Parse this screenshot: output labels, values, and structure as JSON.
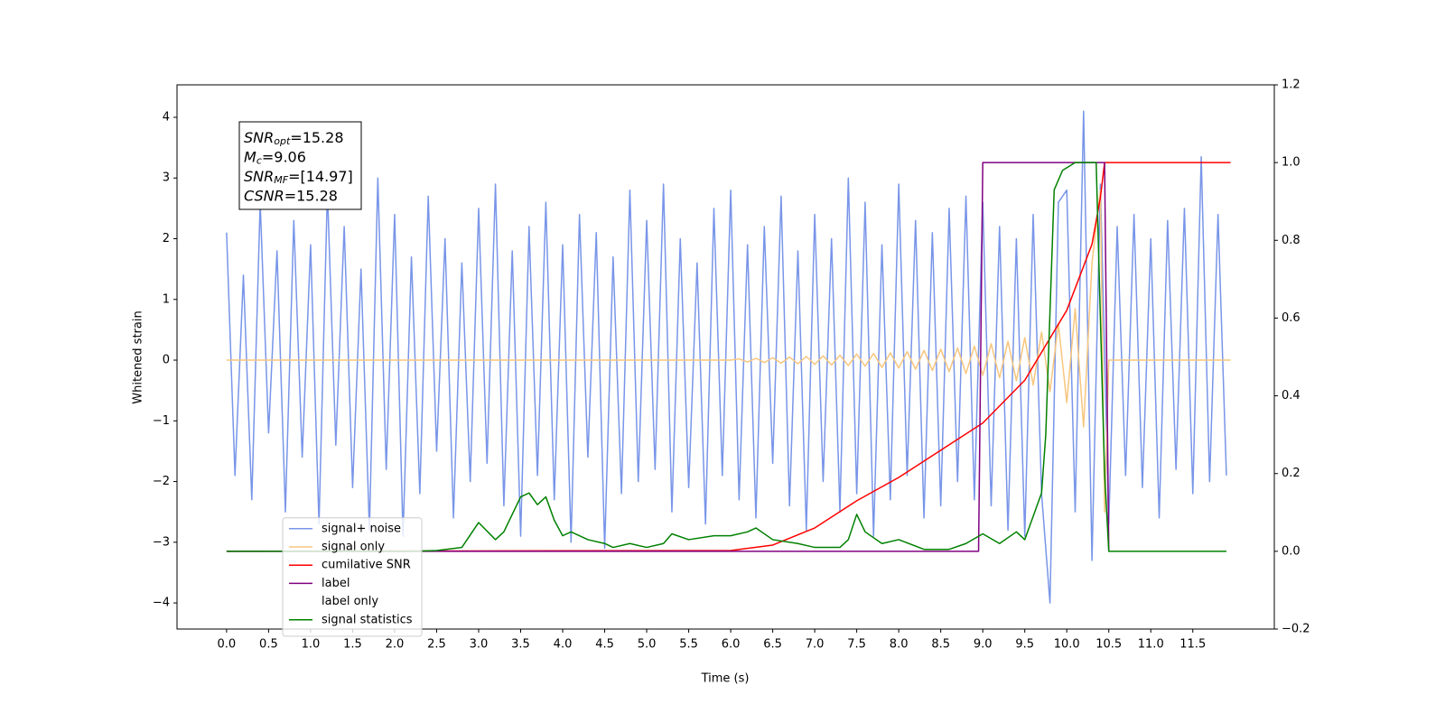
{
  "chart_data": {
    "type": "line",
    "xlabel": "Time (s)",
    "ylabel": "Whitened strain",
    "xlim": [
      -0.59,
      12.47
    ],
    "ylim": [
      -4.43,
      4.535
    ],
    "y2lim": [
      -0.2,
      1.2
    ],
    "xticks": [
      {
        "value": 0,
        "label": "0.0"
      },
      0.5,
      {
        "value": 1,
        "label": "1.0"
      },
      1.5,
      {
        "value": 2,
        "label": "2.0"
      },
      2.5,
      {
        "value": 3,
        "label": "3.0"
      },
      3.5,
      {
        "value": 4,
        "label": "4.0"
      },
      4.5,
      {
        "value": 5,
        "label": "5.0"
      },
      5.5,
      {
        "value": 6,
        "label": "6.0"
      },
      6.5,
      {
        "value": 7,
        "label": "7.0"
      },
      7.5,
      {
        "value": 8,
        "label": "8.0"
      },
      8.5,
      {
        "value": 9,
        "label": "9.0"
      },
      9.5,
      {
        "value": 10,
        "label": "10.0"
      },
      10.5,
      {
        "value": 11,
        "label": "11.0"
      },
      11.5
    ],
    "yticks": [
      {
        "value": -4,
        "label": "−4"
      },
      {
        "value": -3,
        "label": "−3"
      },
      {
        "value": -2,
        "label": "−2"
      },
      {
        "value": -1,
        "label": "−1"
      },
      0,
      1,
      2,
      3,
      4
    ],
    "y2ticks": [
      {
        "value": -0.2,
        "label": "−0.2"
      },
      {
        "value": 0,
        "label": "0.0"
      },
      0.2,
      0.4,
      0.6,
      0.8,
      {
        "value": 1,
        "label": "1.0"
      },
      1.2
    ],
    "legend": "lower left",
    "annotation": [
      {
        "base": "SNR",
        "sub": "opt",
        "text": "=15.28"
      },
      {
        "base": "M",
        "sub": "c",
        "text": "=9.06"
      },
      {
        "base": "SNR",
        "sub": "MF",
        "text": "=[14.97]"
      },
      {
        "base": "CSNR",
        "sub": "",
        "text": "=15.28"
      }
    ],
    "series": [
      {
        "name": "signal+ noise",
        "color": "#7895e8",
        "axis": "y",
        "x": [
          0.0,
          0.1,
          0.2,
          0.3,
          0.4,
          0.5,
          0.6,
          0.7,
          0.8,
          0.9,
          1.0,
          1.1,
          1.2,
          1.3,
          1.4,
          1.5,
          1.6,
          1.7,
          1.8,
          1.9,
          2.0,
          2.1,
          2.2,
          2.3,
          2.4,
          2.5,
          2.6,
          2.7,
          2.8,
          2.9,
          3.0,
          3.1,
          3.2,
          3.3,
          3.4,
          3.5,
          3.6,
          3.7,
          3.8,
          3.9,
          4.0,
          4.1,
          4.2,
          4.3,
          4.4,
          4.5,
          4.6,
          4.7,
          4.8,
          4.9,
          5.0,
          5.1,
          5.2,
          5.3,
          5.4,
          5.5,
          5.6,
          5.7,
          5.8,
          5.9,
          6.0,
          6.1,
          6.2,
          6.3,
          6.4,
          6.5,
          6.6,
          6.7,
          6.8,
          6.9,
          7.0,
          7.1,
          7.2,
          7.3,
          7.4,
          7.5,
          7.6,
          7.7,
          7.8,
          7.9,
          8.0,
          8.1,
          8.2,
          8.3,
          8.4,
          8.5,
          8.6,
          8.7,
          8.8,
          8.9,
          9.0,
          9.1,
          9.2,
          9.3,
          9.4,
          9.5,
          9.6,
          9.7,
          9.8,
          9.9,
          10.0,
          10.1,
          10.2,
          10.3,
          10.4,
          10.5,
          10.6,
          10.7,
          10.8,
          10.9,
          11.0,
          11.1,
          11.2,
          11.3,
          11.4,
          11.5,
          11.6,
          11.7,
          11.8,
          11.9
        ],
        "values": [
          2.1,
          -1.9,
          1.4,
          -2.3,
          2.6,
          -1.2,
          1.8,
          -2.5,
          2.3,
          -1.6,
          1.9,
          -2.7,
          2.8,
          -1.4,
          2.2,
          -2.1,
          1.5,
          -2.8,
          3.0,
          -1.8,
          2.4,
          -2.9,
          1.7,
          -2.2,
          2.7,
          -1.5,
          2.0,
          -2.6,
          1.6,
          -2.0,
          2.5,
          -1.7,
          2.9,
          -2.4,
          1.8,
          -2.9,
          2.2,
          -1.9,
          2.6,
          -2.3,
          1.9,
          -3.0,
          2.4,
          -1.6,
          2.1,
          -3.1,
          1.7,
          -2.2,
          2.8,
          -2.0,
          2.3,
          -1.8,
          2.9,
          -2.5,
          2.0,
          -2.1,
          1.6,
          -2.7,
          2.5,
          -1.9,
          2.8,
          -2.3,
          1.9,
          -2.6,
          2.2,
          -1.7,
          2.7,
          -2.4,
          1.8,
          -2.8,
          2.4,
          -2.0,
          2.0,
          -2.5,
          3.0,
          -2.2,
          2.6,
          -2.9,
          1.9,
          -2.3,
          2.9,
          -1.9,
          2.3,
          -2.6,
          2.1,
          -2.4,
          2.5,
          -2.0,
          2.7,
          -2.3,
          2.6,
          -2.4,
          2.2,
          -2.8,
          2.0,
          -2.9,
          2.4,
          -2.2,
          -4.0,
          2.6,
          2.8,
          -2.5,
          4.1,
          -3.3,
          2.9,
          -2.7,
          2.2,
          -1.9,
          2.4,
          -2.1,
          2.0,
          -2.6,
          2.3,
          -1.8,
          2.5,
          -2.2,
          3.35,
          -2.0,
          2.4,
          -1.9
        ]
      },
      {
        "name": "signal only",
        "color": "#f7c67e",
        "axis": "y",
        "x": [
          0,
          6.0,
          6.1,
          6.2,
          6.3,
          6.4,
          6.5,
          6.6,
          6.7,
          6.8,
          6.9,
          7.0,
          7.1,
          7.2,
          7.3,
          7.4,
          7.5,
          7.6,
          7.7,
          7.8,
          7.9,
          8.0,
          8.1,
          8.2,
          8.3,
          8.4,
          8.5,
          8.6,
          8.7,
          8.8,
          8.9,
          9.0,
          9.1,
          9.2,
          9.3,
          9.4,
          9.5,
          9.6,
          9.7,
          9.8,
          9.9,
          10.0,
          10.1,
          10.2,
          10.3,
          10.4,
          10.45,
          10.5,
          11.95
        ],
        "values": [
          0,
          0,
          0.02,
          -0.03,
          0.03,
          -0.04,
          0.04,
          -0.05,
          0.05,
          -0.06,
          0.06,
          -0.07,
          0.07,
          -0.08,
          0.08,
          -0.09,
          0.1,
          -0.1,
          0.11,
          -0.12,
          0.12,
          -0.13,
          0.14,
          -0.15,
          0.16,
          -0.17,
          0.18,
          -0.19,
          0.2,
          -0.22,
          0.23,
          -0.25,
          0.27,
          -0.29,
          0.31,
          -0.34,
          0.37,
          -0.41,
          0.46,
          -0.52,
          0.6,
          -0.7,
          0.85,
          -1.1,
          1.6,
          2.8,
          -2.5,
          0,
          0
        ]
      },
      {
        "name": "cumilative SNR",
        "color": "#ff0000",
        "axis": "y2",
        "x": [
          0,
          6.0,
          6.5,
          7.0,
          7.5,
          8.0,
          8.5,
          9.0,
          9.5,
          10.0,
          10.3,
          10.4,
          10.45,
          11.95
        ],
        "values": [
          0,
          0.002,
          0.016,
          0.06,
          0.13,
          0.19,
          0.26,
          0.33,
          0.44,
          0.62,
          0.79,
          0.91,
          1.0,
          1.0
        ]
      },
      {
        "name": "label",
        "color": "#800080",
        "axis": "y2",
        "x": [
          0,
          8.95,
          9.0,
          10.45,
          10.5
        ],
        "values": [
          0,
          0,
          1,
          1,
          0
        ]
      },
      {
        "name": "label only",
        "color": "#ffffff",
        "axis": "y2",
        "x": [
          0,
          11.95
        ],
        "values": [
          null,
          null
        ]
      },
      {
        "name": "signal statistics",
        "color": "#008000",
        "axis": "y2",
        "x": [
          0,
          2.2,
          2.5,
          2.8,
          3.0,
          3.2,
          3.3,
          3.5,
          3.6,
          3.7,
          3.8,
          3.9,
          4.0,
          4.1,
          4.3,
          4.5,
          4.6,
          4.8,
          5.0,
          5.2,
          5.3,
          5.5,
          5.8,
          6.0,
          6.2,
          6.3,
          6.5,
          6.8,
          7.0,
          7.3,
          7.4,
          7.5,
          7.6,
          7.8,
          8.0,
          8.3,
          8.6,
          8.8,
          9.0,
          9.2,
          9.4,
          9.5,
          9.6,
          9.7,
          9.75,
          9.85,
          9.95,
          10.1,
          10.35,
          10.4,
          10.45,
          10.5,
          11.9
        ],
        "values": [
          0,
          0,
          0.002,
          0.01,
          0.074,
          0.03,
          0.05,
          0.14,
          0.15,
          0.12,
          0.14,
          0.08,
          0.04,
          0.05,
          0.03,
          0.02,
          0.01,
          0.02,
          0.01,
          0.02,
          0.045,
          0.03,
          0.04,
          0.04,
          0.05,
          0.06,
          0.03,
          0.02,
          0.01,
          0.01,
          0.03,
          0.095,
          0.05,
          0.02,
          0.03,
          0.005,
          0.005,
          0.02,
          0.045,
          0.02,
          0.05,
          0.03,
          0.09,
          0.15,
          0.3,
          0.93,
          0.98,
          1.0,
          1.0,
          0.6,
          0.2,
          0,
          0
        ]
      }
    ]
  }
}
